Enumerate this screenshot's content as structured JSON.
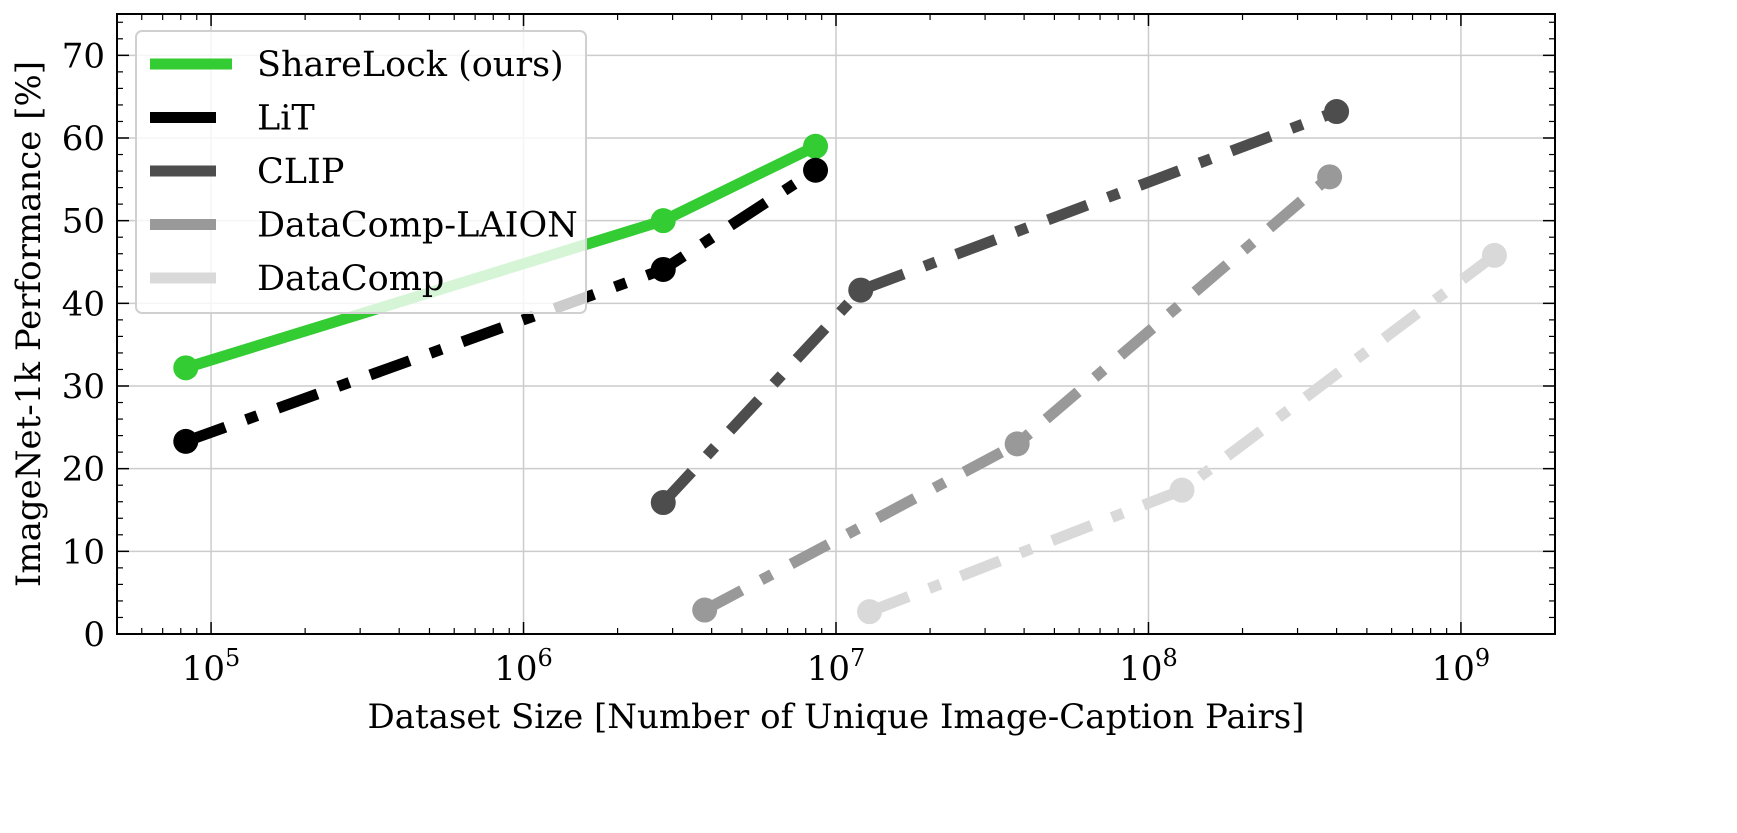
{
  "chart_data": {
    "type": "line",
    "xlabel": "Dataset Size [Number of Unique Image-Caption Pairs]",
    "ylabel": "ImageNet-1k Performance [%]",
    "xscale": "log",
    "xlim": [
      50000,
      2000000000
    ],
    "ylim": [
      0,
      75
    ],
    "grid": true,
    "legend_position": "top-left",
    "x_ticks": [
      {
        "value": 100000,
        "base": "10",
        "exp": "5"
      },
      {
        "value": 1000000,
        "base": "10",
        "exp": "6"
      },
      {
        "value": 10000000,
        "base": "10",
        "exp": "7"
      },
      {
        "value": 100000000,
        "base": "10",
        "exp": "8"
      },
      {
        "value": 1000000000,
        "base": "10",
        "exp": "9"
      }
    ],
    "y_ticks": [
      {
        "value": 0,
        "label": "0"
      },
      {
        "value": 10,
        "label": "10"
      },
      {
        "value": 20,
        "label": "20"
      },
      {
        "value": 30,
        "label": "30"
      },
      {
        "value": 40,
        "label": "40"
      },
      {
        "value": 50,
        "label": "50"
      },
      {
        "value": 60,
        "label": "60"
      },
      {
        "value": 70,
        "label": "70"
      }
    ],
    "series": [
      {
        "name": "ShareLock (ours)",
        "color": "#33cc33",
        "style": "solid",
        "x": [
          83000,
          2800000,
          8600000
        ],
        "y": [
          32.2,
          50.0,
          59.0
        ]
      },
      {
        "name": "LiT",
        "color": "#000000",
        "style": "dashdot",
        "x": [
          83000,
          2800000,
          8600000
        ],
        "y": [
          23.3,
          44.1,
          56.1
        ]
      },
      {
        "name": "CLIP",
        "color": "#4d4d4d",
        "style": "dashdot",
        "x": [
          2800000,
          12000000,
          400000000
        ],
        "y": [
          15.9,
          41.6,
          63.2
        ]
      },
      {
        "name": "DataComp-LAION",
        "color": "#999999",
        "style": "dashdot",
        "x": [
          3800000,
          38000000,
          380000000
        ],
        "y": [
          2.9,
          23.0,
          55.3
        ]
      },
      {
        "name": "DataComp",
        "color": "#d9d9d9",
        "style": "dashdot",
        "x": [
          12800000,
          128000000,
          1280000000
        ],
        "y": [
          2.7,
          17.4,
          45.8
        ]
      }
    ]
  }
}
